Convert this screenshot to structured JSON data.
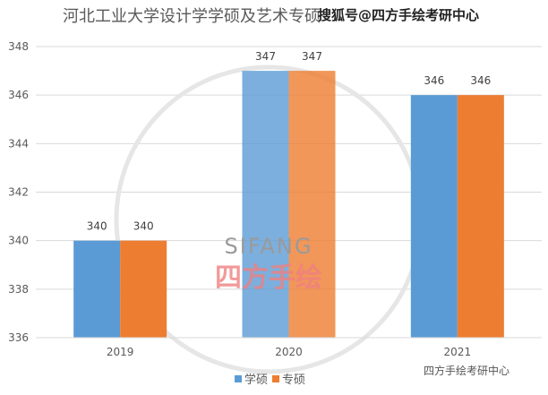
{
  "chart_data": {
    "type": "bar",
    "title": "河北工业大学设计学学硕及艺术专硕",
    "categories": [
      "2019",
      "2020",
      "2021"
    ],
    "series": [
      {
        "name": "学硕",
        "values": [
          340,
          347,
          346
        ],
        "color": "#5b9bd5"
      },
      {
        "name": "专硕",
        "values": [
          340,
          347,
          346
        ],
        "color": "#ed7d31"
      }
    ],
    "ylim": [
      336,
      348
    ],
    "yticks": [
      "336",
      "338",
      "340",
      "342",
      "344",
      "346",
      "348"
    ],
    "grid": true,
    "legend": "bottom"
  },
  "watermarks": {
    "top": "搜狐号@四方手绘考研中心",
    "center_logo": "SIFANG",
    "center_logo_cn": "四方手绘",
    "bottom": "四方手绘考研中心"
  }
}
